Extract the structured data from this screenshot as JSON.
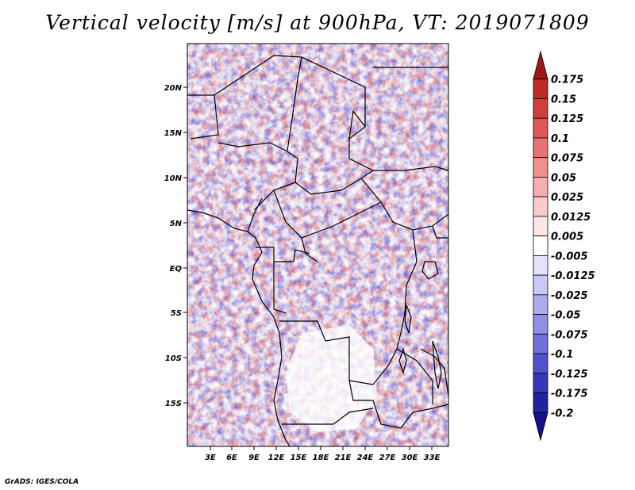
{
  "title": "Vertical velocity [m/s] at 900hPa, VT: 2019071809",
  "credit": "GrADS: IGES/COLA",
  "map": {
    "variable": "Vertical velocity",
    "units": "m/s",
    "level": "900hPa",
    "valid_time": "2019071809",
    "lat_labels": [
      "20N",
      "15N",
      "10N",
      "5N",
      "EQ",
      "5S",
      "10S",
      "15S"
    ],
    "lon_labels": [
      "3E",
      "6E",
      "9E",
      "12E",
      "15E",
      "18E",
      "21E",
      "24E",
      "27E",
      "30E",
      "33E"
    ]
  },
  "colorbar": {
    "labels": [
      "0.175",
      "0.15",
      "0.125",
      "0.1",
      "0.075",
      "0.05",
      "0.025",
      "0.0125",
      "0.005",
      "-0.005",
      "-0.0125",
      "-0.025",
      "-0.05",
      "-0.075",
      "-0.1",
      "-0.125",
      "-0.175",
      "-0.2"
    ],
    "colors": [
      "#a01818",
      "#bd2a2a",
      "#d03e3e",
      "#de5858",
      "#e87272",
      "#ef8f8f",
      "#f5adad",
      "#f9cbcb",
      "#fde6e6",
      "#ffffff",
      "#e2e2fa",
      "#c9c9f4",
      "#adadee",
      "#8f8fe6",
      "#7070da",
      "#5252cc",
      "#3636b8",
      "#2222a0",
      "#12128a"
    ]
  }
}
